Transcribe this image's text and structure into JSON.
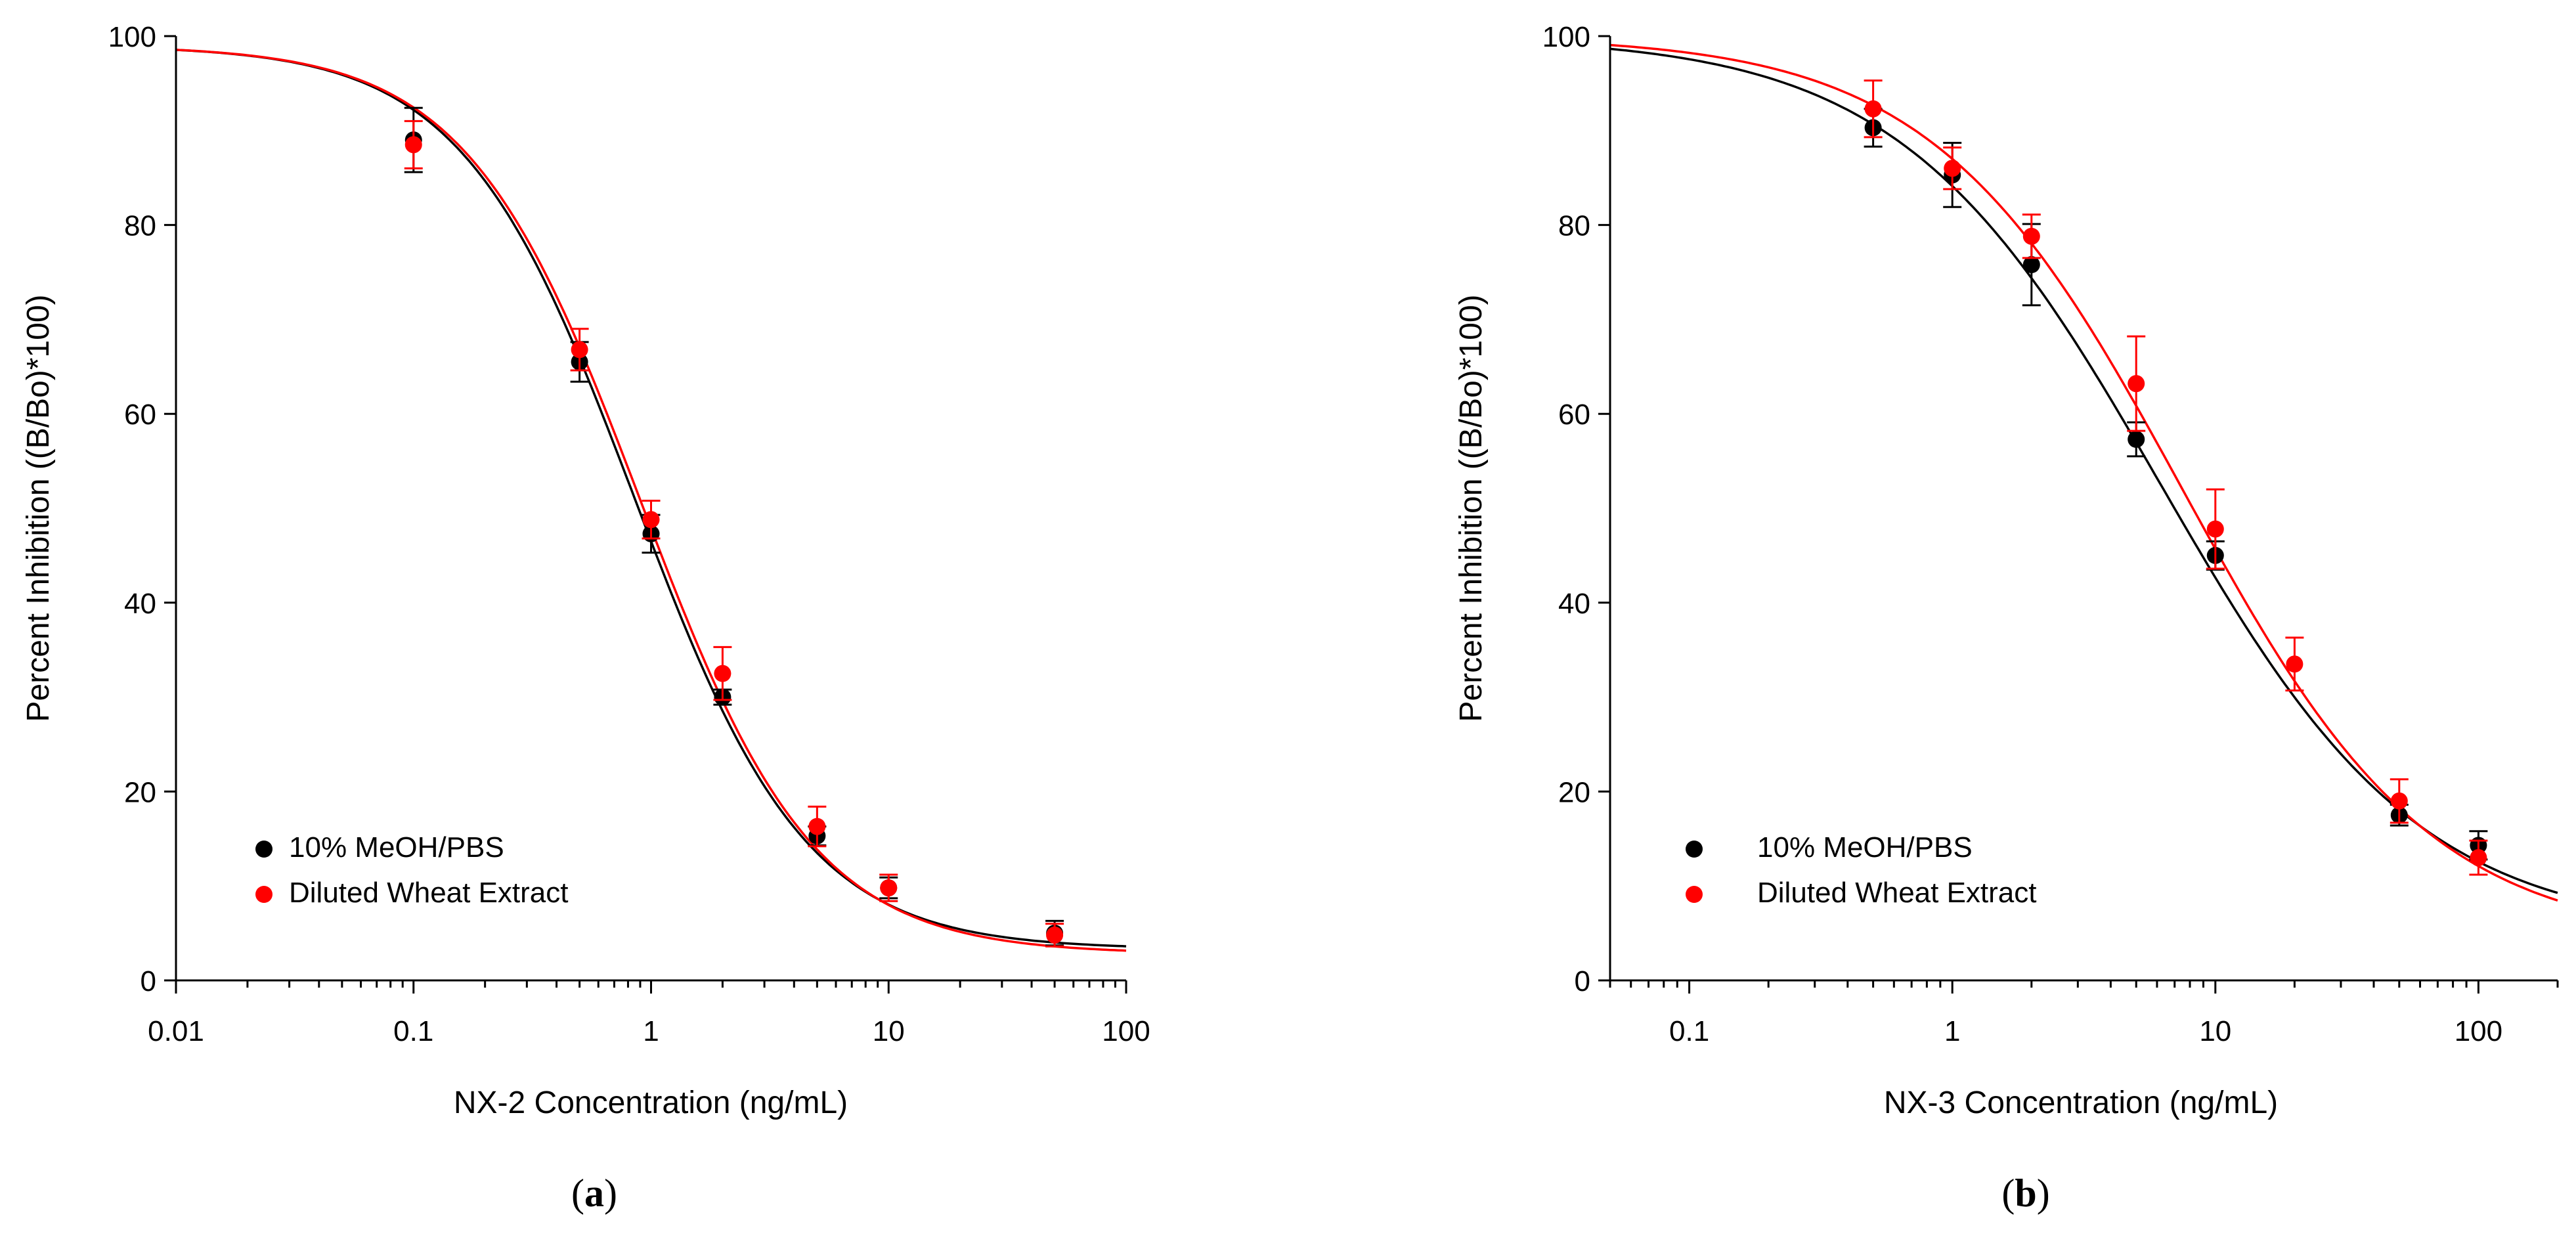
{
  "colors": {
    "series_a": "#000000",
    "series_b": "#ff0000",
    "axis": "#000000",
    "background": "#ffffff"
  },
  "chart_data": [
    {
      "type": "scatter",
      "panel_label": "(a)",
      "panel_label_parts": {
        "open": "(",
        "letter": "a",
        "close": ")"
      },
      "title": "",
      "xlabel": "NX-2 Concentration (ng/mL)",
      "ylabel": "Percent Inhibition ((B/Bo)*100)",
      "xscale": "log",
      "xlim": [
        0.01,
        100
      ],
      "ylim": [
        0,
        100
      ],
      "xticks": [
        0.01,
        0.1,
        1,
        10,
        100
      ],
      "xtick_labels": [
        "0.01",
        "0.1",
        "1",
        "10",
        "100"
      ],
      "yticks": [
        0,
        20,
        40,
        60,
        80,
        100
      ],
      "ytick_labels": [
        "0",
        "20",
        "40",
        "60",
        "80",
        "100"
      ],
      "legend_position": "bottom-left",
      "series": [
        {
          "name": "10% MeOH/PBS",
          "color": "#000000",
          "x": [
            0.1,
            0.5,
            1,
            2,
            5,
            10,
            50
          ],
          "y": [
            89.0,
            65.5,
            47.3,
            30.0,
            15.3,
            9.8,
            5.0
          ],
          "err": [
            3.4,
            2.1,
            2.0,
            0.8,
            1.0,
            1.1,
            1.3
          ],
          "fit": {
            "model": "4PL",
            "top": 99,
            "bottom": 3.3,
            "ic50": 0.85,
            "slope": 1.2
          }
        },
        {
          "name": "Diluted Wheat Extract",
          "color": "#ff0000",
          "x": [
            0.1,
            0.5,
            1,
            2,
            5,
            10,
            50
          ],
          "y": [
            88.5,
            66.8,
            48.8,
            32.5,
            16.3,
            9.8,
            4.8
          ],
          "err": [
            2.5,
            2.2,
            2.0,
            2.8,
            2.1,
            1.4,
            1.2
          ],
          "fit": {
            "model": "4PL",
            "top": 99,
            "bottom": 2.8,
            "ic50": 0.9,
            "slope": 1.19
          }
        }
      ]
    },
    {
      "type": "scatter",
      "panel_label": "(b)",
      "panel_label_parts": {
        "open": "(",
        "letter": "b",
        "close": ")"
      },
      "title": "",
      "xlabel": "NX-3 Concentration (ng/mL)",
      "ylabel": "Percent Inhibition ((B/Bo)*100)",
      "xscale": "log",
      "xlim": [
        0.05,
        200
      ],
      "ylim": [
        0,
        100
      ],
      "xticks": [
        0.1,
        1,
        10,
        100
      ],
      "xtick_labels": [
        "0.1",
        "1",
        "10",
        "100"
      ],
      "yticks": [
        0,
        20,
        40,
        60,
        80,
        100
      ],
      "ytick_labels": [
        "0",
        "20",
        "40",
        "60",
        "80",
        "100"
      ],
      "legend_position": "bottom-left",
      "series": [
        {
          "name": "10% MeOH/PBS",
          "color": "#000000",
          "x": [
            0.5,
            1,
            2,
            5,
            10,
            50,
            100
          ],
          "y": [
            90.3,
            85.3,
            75.8,
            57.3,
            45.0,
            17.5,
            14.3
          ],
          "err": [
            2.0,
            3.4,
            4.3,
            1.8,
            1.5,
            1.1,
            1.5
          ],
          "fit": {
            "model": "4PL",
            "top": 100,
            "bottom": 5,
            "ic50": 6.2,
            "slope": 0.88
          }
        },
        {
          "name": "Diluted Wheat Extract",
          "color": "#ff0000",
          "x": [
            0.5,
            1,
            2,
            5,
            10,
            20,
            50,
            100
          ],
          "y": [
            92.3,
            86.0,
            78.8,
            63.2,
            47.8,
            33.5,
            19.0,
            13.0
          ],
          "err": [
            3.0,
            2.2,
            2.3,
            5.0,
            4.2,
            2.8,
            2.3,
            1.8
          ],
          "fit": {
            "model": "4PL",
            "top": 100,
            "bottom": 4,
            "ic50": 7.5,
            "slope": 0.92
          }
        }
      ]
    }
  ]
}
